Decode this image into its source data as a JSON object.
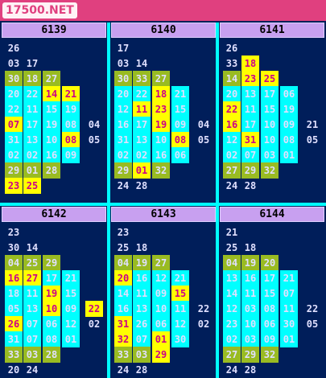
{
  "site": {
    "brand": "17500.NET"
  },
  "panels": [
    {
      "id": "6139",
      "rows": [
        [
          {
            "c": 0,
            "v": "26",
            "t": "n"
          }
        ],
        [
          {
            "c": 0,
            "v": "03",
            "t": "n"
          },
          {
            "c": 1,
            "v": "17",
            "t": "n"
          }
        ],
        [
          {
            "c": 0,
            "v": "30",
            "t": "o"
          },
          {
            "c": 1,
            "v": "18",
            "t": "o"
          },
          {
            "c": 2,
            "v": "27",
            "t": "o"
          }
        ],
        [
          {
            "c": 0,
            "v": "20",
            "t": "a"
          },
          {
            "c": 1,
            "v": "22",
            "t": "a"
          },
          {
            "c": 2,
            "v": "14",
            "t": "y"
          },
          {
            "c": 3,
            "v": "21",
            "t": "y"
          }
        ],
        [
          {
            "c": 0,
            "v": "22",
            "t": "a"
          },
          {
            "c": 1,
            "v": "11",
            "t": "a"
          },
          {
            "c": 2,
            "v": "15",
            "t": "a"
          },
          {
            "c": 3,
            "v": "19",
            "t": "a"
          }
        ],
        [
          {
            "c": 0,
            "v": "07",
            "t": "y"
          },
          {
            "c": 1,
            "v": "17",
            "t": "a"
          },
          {
            "c": 2,
            "v": "19",
            "t": "a"
          },
          {
            "c": 3,
            "v": "08",
            "t": "a"
          },
          {
            "c": 4,
            "v": "04",
            "t": "n"
          }
        ],
        [
          {
            "c": 0,
            "v": "31",
            "t": "a"
          },
          {
            "c": 1,
            "v": "13",
            "t": "a"
          },
          {
            "c": 2,
            "v": "10",
            "t": "a"
          },
          {
            "c": 3,
            "v": "08",
            "t": "y"
          },
          {
            "c": 4,
            "v": "05",
            "t": "n"
          }
        ],
        [
          {
            "c": 0,
            "v": "02",
            "t": "a"
          },
          {
            "c": 1,
            "v": "02",
            "t": "a"
          },
          {
            "c": 2,
            "v": "16",
            "t": "a"
          },
          {
            "c": 3,
            "v": "09",
            "t": "a"
          }
        ],
        [
          {
            "c": 0,
            "v": "29",
            "t": "o"
          },
          {
            "c": 1,
            "v": "01",
            "t": "o"
          },
          {
            "c": 2,
            "v": "28",
            "t": "o"
          }
        ],
        [
          {
            "c": 0,
            "v": "23",
            "t": "y"
          },
          {
            "c": 1,
            "v": "25",
            "t": "y"
          }
        ]
      ]
    },
    {
      "id": "6140",
      "rows": [
        [
          {
            "c": 0,
            "v": "17",
            "t": "n"
          }
        ],
        [
          {
            "c": 0,
            "v": "03",
            "t": "n"
          },
          {
            "c": 1,
            "v": "14",
            "t": "n"
          }
        ],
        [
          {
            "c": 0,
            "v": "30",
            "t": "o"
          },
          {
            "c": 1,
            "v": "33",
            "t": "o"
          },
          {
            "c": 2,
            "v": "27",
            "t": "o"
          }
        ],
        [
          {
            "c": 0,
            "v": "20",
            "t": "a"
          },
          {
            "c": 1,
            "v": "22",
            "t": "a"
          },
          {
            "c": 2,
            "v": "18",
            "t": "y"
          },
          {
            "c": 3,
            "v": "21",
            "t": "a"
          }
        ],
        [
          {
            "c": 0,
            "v": "12",
            "t": "a"
          },
          {
            "c": 1,
            "v": "11",
            "t": "y"
          },
          {
            "c": 2,
            "v": "23",
            "t": "y"
          },
          {
            "c": 3,
            "v": "15",
            "t": "a"
          }
        ],
        [
          {
            "c": 0,
            "v": "16",
            "t": "a"
          },
          {
            "c": 1,
            "v": "17",
            "t": "a"
          },
          {
            "c": 2,
            "v": "19",
            "t": "y"
          },
          {
            "c": 3,
            "v": "09",
            "t": "a"
          },
          {
            "c": 4,
            "v": "04",
            "t": "n"
          }
        ],
        [
          {
            "c": 0,
            "v": "31",
            "t": "a"
          },
          {
            "c": 1,
            "v": "13",
            "t": "a"
          },
          {
            "c": 2,
            "v": "10",
            "t": "a"
          },
          {
            "c": 3,
            "v": "08",
            "t": "y"
          },
          {
            "c": 4,
            "v": "05",
            "t": "n"
          }
        ],
        [
          {
            "c": 0,
            "v": "02",
            "t": "a"
          },
          {
            "c": 1,
            "v": "02",
            "t": "a"
          },
          {
            "c": 2,
            "v": "16",
            "t": "a"
          },
          {
            "c": 3,
            "v": "06",
            "t": "a"
          }
        ],
        [
          {
            "c": 0,
            "v": "29",
            "t": "o"
          },
          {
            "c": 1,
            "v": "01",
            "t": "y"
          },
          {
            "c": 2,
            "v": "32",
            "t": "o"
          }
        ],
        [
          {
            "c": 0,
            "v": "24",
            "t": "n"
          },
          {
            "c": 1,
            "v": "28",
            "t": "n"
          }
        ]
      ]
    },
    {
      "id": "6141",
      "rows": [
        [
          {
            "c": 0,
            "v": "26",
            "t": "n"
          }
        ],
        [
          {
            "c": 0,
            "v": "33",
            "t": "n"
          },
          {
            "c": 1,
            "v": "18",
            "t": "y"
          }
        ],
        [
          {
            "c": 0,
            "v": "14",
            "t": "o"
          },
          {
            "c": 1,
            "v": "23",
            "t": "y"
          },
          {
            "c": 2,
            "v": "25",
            "t": "y"
          }
        ],
        [
          {
            "c": 0,
            "v": "20",
            "t": "a"
          },
          {
            "c": 1,
            "v": "13",
            "t": "a"
          },
          {
            "c": 2,
            "v": "17",
            "t": "a"
          },
          {
            "c": 3,
            "v": "06",
            "t": "a"
          }
        ],
        [
          {
            "c": 0,
            "v": "22",
            "t": "y"
          },
          {
            "c": 1,
            "v": "11",
            "t": "a"
          },
          {
            "c": 2,
            "v": "15",
            "t": "a"
          },
          {
            "c": 3,
            "v": "19",
            "t": "a"
          }
        ],
        [
          {
            "c": 0,
            "v": "16",
            "t": "y"
          },
          {
            "c": 1,
            "v": "17",
            "t": "a"
          },
          {
            "c": 2,
            "v": "10",
            "t": "a"
          },
          {
            "c": 3,
            "v": "09",
            "t": "a"
          },
          {
            "c": 4,
            "v": "21",
            "t": "n"
          }
        ],
        [
          {
            "c": 0,
            "v": "12",
            "t": "a"
          },
          {
            "c": 1,
            "v": "31",
            "t": "y"
          },
          {
            "c": 2,
            "v": "10",
            "t": "a"
          },
          {
            "c": 3,
            "v": "08",
            "t": "a"
          },
          {
            "c": 4,
            "v": "05",
            "t": "n"
          }
        ],
        [
          {
            "c": 0,
            "v": "02",
            "t": "a"
          },
          {
            "c": 1,
            "v": "07",
            "t": "a"
          },
          {
            "c": 2,
            "v": "03",
            "t": "a"
          },
          {
            "c": 3,
            "v": "01",
            "t": "a"
          }
        ],
        [
          {
            "c": 0,
            "v": "27",
            "t": "o"
          },
          {
            "c": 1,
            "v": "29",
            "t": "o"
          },
          {
            "c": 2,
            "v": "32",
            "t": "o"
          }
        ],
        [
          {
            "c": 0,
            "v": "24",
            "t": "n"
          },
          {
            "c": 1,
            "v": "28",
            "t": "n"
          }
        ]
      ]
    },
    {
      "id": "6142",
      "rows": [
        [
          {
            "c": 0,
            "v": "23",
            "t": "n"
          }
        ],
        [
          {
            "c": 0,
            "v": "30",
            "t": "n"
          },
          {
            "c": 1,
            "v": "14",
            "t": "n"
          }
        ],
        [
          {
            "c": 0,
            "v": "04",
            "t": "o"
          },
          {
            "c": 1,
            "v": "25",
            "t": "o"
          },
          {
            "c": 2,
            "v": "29",
            "t": "o"
          }
        ],
        [
          {
            "c": 0,
            "v": "16",
            "t": "y"
          },
          {
            "c": 1,
            "v": "27",
            "t": "y"
          },
          {
            "c": 2,
            "v": "17",
            "t": "a"
          },
          {
            "c": 3,
            "v": "21",
            "t": "a"
          }
        ],
        [
          {
            "c": 0,
            "v": "18",
            "t": "a"
          },
          {
            "c": 1,
            "v": "11",
            "t": "a"
          },
          {
            "c": 2,
            "v": "19",
            "t": "y"
          },
          {
            "c": 3,
            "v": "15",
            "t": "a"
          }
        ],
        [
          {
            "c": 0,
            "v": "05",
            "t": "a"
          },
          {
            "c": 1,
            "v": "13",
            "t": "a"
          },
          {
            "c": 2,
            "v": "10",
            "t": "y"
          },
          {
            "c": 3,
            "v": "09",
            "t": "a"
          },
          {
            "c": 4,
            "v": "22",
            "t": "y"
          }
        ],
        [
          {
            "c": 0,
            "v": "26",
            "t": "y"
          },
          {
            "c": 1,
            "v": "07",
            "t": "a"
          },
          {
            "c": 2,
            "v": "06",
            "t": "a"
          },
          {
            "c": 3,
            "v": "12",
            "t": "a"
          },
          {
            "c": 4,
            "v": "02",
            "t": "n"
          }
        ],
        [
          {
            "c": 0,
            "v": "31",
            "t": "a"
          },
          {
            "c": 1,
            "v": "07",
            "t": "a"
          },
          {
            "c": 2,
            "v": "08",
            "t": "a"
          },
          {
            "c": 3,
            "v": "01",
            "t": "a"
          }
        ],
        [
          {
            "c": 0,
            "v": "33",
            "t": "o"
          },
          {
            "c": 1,
            "v": "03",
            "t": "o"
          },
          {
            "c": 2,
            "v": "28",
            "t": "o"
          }
        ],
        [
          {
            "c": 0,
            "v": "20",
            "t": "n"
          },
          {
            "c": 1,
            "v": "24",
            "t": "n"
          }
        ]
      ]
    },
    {
      "id": "6143",
      "rows": [
        [
          {
            "c": 0,
            "v": "23",
            "t": "n"
          }
        ],
        [
          {
            "c": 0,
            "v": "25",
            "t": "n"
          },
          {
            "c": 1,
            "v": "18",
            "t": "n"
          }
        ],
        [
          {
            "c": 0,
            "v": "04",
            "t": "o"
          },
          {
            "c": 1,
            "v": "19",
            "t": "o"
          },
          {
            "c": 2,
            "v": "27",
            "t": "o"
          }
        ],
        [
          {
            "c": 0,
            "v": "20",
            "t": "y"
          },
          {
            "c": 1,
            "v": "16",
            "t": "a"
          },
          {
            "c": 2,
            "v": "12",
            "t": "a"
          },
          {
            "c": 3,
            "v": "21",
            "t": "a"
          }
        ],
        [
          {
            "c": 0,
            "v": "14",
            "t": "a"
          },
          {
            "c": 1,
            "v": "11",
            "t": "a"
          },
          {
            "c": 2,
            "v": "09",
            "t": "a"
          },
          {
            "c": 3,
            "v": "15",
            "t": "y"
          }
        ],
        [
          {
            "c": 0,
            "v": "16",
            "t": "a"
          },
          {
            "c": 1,
            "v": "13",
            "t": "a"
          },
          {
            "c": 2,
            "v": "10",
            "t": "a"
          },
          {
            "c": 3,
            "v": "11",
            "t": "a"
          },
          {
            "c": 4,
            "v": "22",
            "t": "n"
          }
        ],
        [
          {
            "c": 0,
            "v": "31",
            "t": "y"
          },
          {
            "c": 1,
            "v": "26",
            "t": "a"
          },
          {
            "c": 2,
            "v": "06",
            "t": "a"
          },
          {
            "c": 3,
            "v": "12",
            "t": "a"
          },
          {
            "c": 4,
            "v": "02",
            "t": "n"
          }
        ],
        [
          {
            "c": 0,
            "v": "32",
            "t": "y"
          },
          {
            "c": 1,
            "v": "07",
            "t": "a"
          },
          {
            "c": 2,
            "v": "01",
            "t": "y"
          },
          {
            "c": 3,
            "v": "30",
            "t": "a"
          }
        ],
        [
          {
            "c": 0,
            "v": "33",
            "t": "o"
          },
          {
            "c": 1,
            "v": "03",
            "t": "o"
          },
          {
            "c": 2,
            "v": "29",
            "t": "y"
          }
        ],
        [
          {
            "c": 0,
            "v": "24",
            "t": "n"
          },
          {
            "c": 1,
            "v": "28",
            "t": "n"
          }
        ]
      ]
    },
    {
      "id": "6144",
      "rows": [
        [
          {
            "c": 0,
            "v": "21",
            "t": "n"
          }
        ],
        [
          {
            "c": 0,
            "v": "25",
            "t": "n"
          },
          {
            "c": 1,
            "v": "18",
            "t": "n"
          }
        ],
        [
          {
            "c": 0,
            "v": "04",
            "t": "o"
          },
          {
            "c": 1,
            "v": "19",
            "t": "o"
          },
          {
            "c": 2,
            "v": "20",
            "t": "o"
          }
        ],
        [
          {
            "c": 0,
            "v": "13",
            "t": "a"
          },
          {
            "c": 1,
            "v": "16",
            "t": "a"
          },
          {
            "c": 2,
            "v": "17",
            "t": "a"
          },
          {
            "c": 3,
            "v": "21",
            "t": "a"
          }
        ],
        [
          {
            "c": 0,
            "v": "14",
            "t": "a"
          },
          {
            "c": 1,
            "v": "11",
            "t": "a"
          },
          {
            "c": 2,
            "v": "15",
            "t": "a"
          },
          {
            "c": 3,
            "v": "07",
            "t": "a"
          }
        ],
        [
          {
            "c": 0,
            "v": "12",
            "t": "a"
          },
          {
            "c": 1,
            "v": "03",
            "t": "a"
          },
          {
            "c": 2,
            "v": "08",
            "t": "a"
          },
          {
            "c": 3,
            "v": "11",
            "t": "a"
          },
          {
            "c": 4,
            "v": "22",
            "t": "n"
          }
        ],
        [
          {
            "c": 0,
            "v": "23",
            "t": "a"
          },
          {
            "c": 1,
            "v": "10",
            "t": "a"
          },
          {
            "c": 2,
            "v": "06",
            "t": "a"
          },
          {
            "c": 3,
            "v": "30",
            "t": "a"
          },
          {
            "c": 4,
            "v": "05",
            "t": "n"
          }
        ],
        [
          {
            "c": 0,
            "v": "02",
            "t": "a"
          },
          {
            "c": 1,
            "v": "03",
            "t": "a"
          },
          {
            "c": 2,
            "v": "09",
            "t": "a"
          },
          {
            "c": 3,
            "v": "01",
            "t": "a"
          }
        ],
        [
          {
            "c": 0,
            "v": "27",
            "t": "o"
          },
          {
            "c": 1,
            "v": "29",
            "t": "o"
          },
          {
            "c": 2,
            "v": "32",
            "t": "o"
          }
        ],
        [
          {
            "c": 0,
            "v": "24",
            "t": "n"
          },
          {
            "c": 1,
            "v": "28",
            "t": "n"
          }
        ]
      ]
    }
  ]
}
